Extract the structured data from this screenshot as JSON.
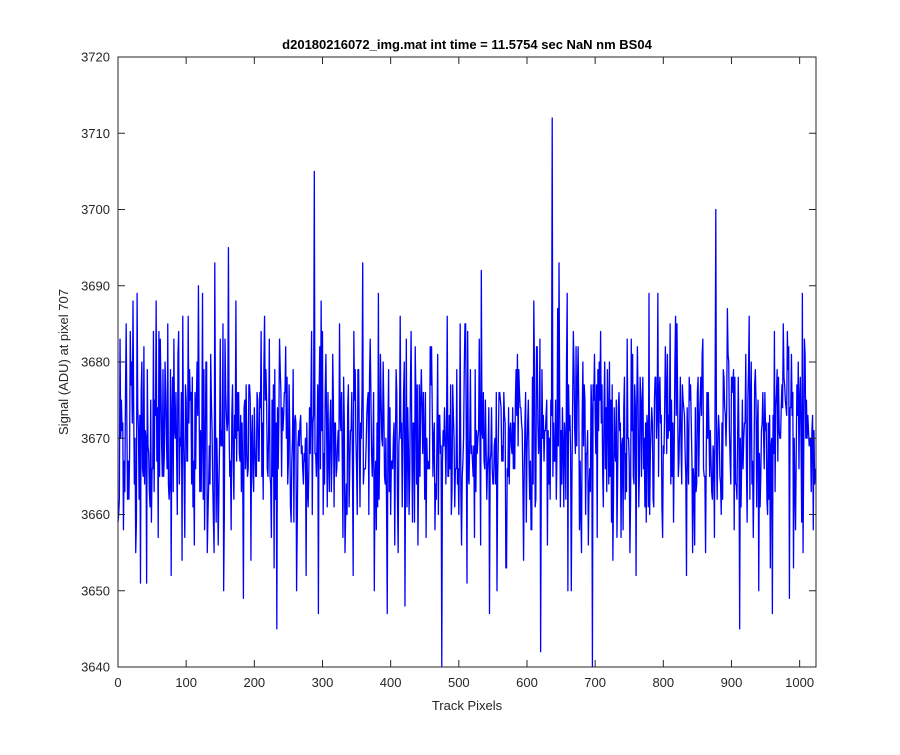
{
  "chart_data": {
    "type": "line",
    "title": "d20180216072_img.mat int time = 11.5754 sec  NaN nm BS04",
    "xlabel": "Track Pixels",
    "ylabel": "Signal (ADU) at pixel 707",
    "xlim": [
      0,
      1024
    ],
    "ylim": [
      3640,
      3720
    ],
    "xticks": [
      0,
      100,
      200,
      300,
      400,
      500,
      600,
      700,
      800,
      900,
      1000
    ],
    "yticks": [
      3640,
      3650,
      3660,
      3670,
      3680,
      3690,
      3700,
      3710,
      3720
    ],
    "grid": false,
    "legend": "none",
    "n_points": 1024,
    "baseline_mean": 3670,
    "series": [
      {
        "color": "#0000ff",
        "notable_points": [
          {
            "x": 1,
            "y": 3660
          },
          {
            "x": 3,
            "y": 3683
          },
          {
            "x": 8,
            "y": 3658
          },
          {
            "x": 12,
            "y": 3685
          },
          {
            "x": 16,
            "y": 3662
          },
          {
            "x": 20,
            "y": 3680
          },
          {
            "x": 22,
            "y": 3688
          },
          {
            "x": 26,
            "y": 3655
          },
          {
            "x": 28,
            "y": 3689
          },
          {
            "x": 33,
            "y": 3651
          },
          {
            "x": 40,
            "y": 3671
          },
          {
            "x": 52,
            "y": 3684
          },
          {
            "x": 62,
            "y": 3683
          },
          {
            "x": 73,
            "y": 3685
          },
          {
            "x": 78,
            "y": 3652
          },
          {
            "x": 94,
            "y": 3654
          },
          {
            "x": 118,
            "y": 3690
          },
          {
            "x": 124,
            "y": 3689
          },
          {
            "x": 136,
            "y": 3681
          },
          {
            "x": 142,
            "y": 3693
          },
          {
            "x": 147,
            "y": 3656
          },
          {
            "x": 155,
            "y": 3650
          },
          {
            "x": 162,
            "y": 3695
          },
          {
            "x": 173,
            "y": 3688
          },
          {
            "x": 184,
            "y": 3649
          },
          {
            "x": 195,
            "y": 3654
          },
          {
            "x": 215,
            "y": 3686
          },
          {
            "x": 225,
            "y": 3657
          },
          {
            "x": 233,
            "y": 3645
          },
          {
            "x": 246,
            "y": 3682
          },
          {
            "x": 262,
            "y": 3650
          },
          {
            "x": 276,
            "y": 3652
          },
          {
            "x": 288,
            "y": 3705
          },
          {
            "x": 294,
            "y": 3647
          },
          {
            "x": 298,
            "y": 3688
          },
          {
            "x": 310,
            "y": 3663
          },
          {
            "x": 330,
            "y": 3657
          },
          {
            "x": 345,
            "y": 3652
          },
          {
            "x": 359,
            "y": 3693
          },
          {
            "x": 376,
            "y": 3650
          },
          {
            "x": 395,
            "y": 3647
          },
          {
            "x": 408,
            "y": 3679
          },
          {
            "x": 421,
            "y": 3648
          },
          {
            "x": 430,
            "y": 3684
          },
          {
            "x": 452,
            "y": 3657
          },
          {
            "x": 465,
            "y": 3658
          },
          {
            "x": 475,
            "y": 3640
          },
          {
            "x": 488,
            "y": 3677
          },
          {
            "x": 500,
            "y": 3660
          },
          {
            "x": 512,
            "y": 3651
          },
          {
            "x": 533,
            "y": 3692
          },
          {
            "x": 545,
            "y": 3647
          },
          {
            "x": 556,
            "y": 3650
          },
          {
            "x": 570,
            "y": 3653
          },
          {
            "x": 590,
            "y": 3674
          },
          {
            "x": 606,
            "y": 3658
          },
          {
            "x": 620,
            "y": 3642
          },
          {
            "x": 637,
            "y": 3712
          },
          {
            "x": 647,
            "y": 3693
          },
          {
            "x": 660,
            "y": 3650
          },
          {
            "x": 675,
            "y": 3682
          },
          {
            "x": 690,
            "y": 3656
          },
          {
            "x": 696,
            "y": 3640
          },
          {
            "x": 710,
            "y": 3677
          },
          {
            "x": 732,
            "y": 3657
          },
          {
            "x": 746,
            "y": 3663
          },
          {
            "x": 760,
            "y": 3652
          },
          {
            "x": 783,
            "y": 3674
          },
          {
            "x": 792,
            "y": 3689
          },
          {
            "x": 799,
            "y": 3657
          },
          {
            "x": 810,
            "y": 3685
          },
          {
            "x": 822,
            "y": 3665
          },
          {
            "x": 834,
            "y": 3652
          },
          {
            "x": 858,
            "y": 3683
          },
          {
            "x": 872,
            "y": 3662
          },
          {
            "x": 877,
            "y": 3700
          },
          {
            "x": 885,
            "y": 3660
          },
          {
            "x": 895,
            "y": 3681
          },
          {
            "x": 912,
            "y": 3645
          },
          {
            "x": 925,
            "y": 3679
          },
          {
            "x": 940,
            "y": 3650
          },
          {
            "x": 960,
            "y": 3647
          },
          {
            "x": 985,
            "y": 3649
          },
          {
            "x": 998,
            "y": 3680
          },
          {
            "x": 1005,
            "y": 3655
          },
          {
            "x": 1008,
            "y": 3681
          },
          {
            "x": 1015,
            "y": 3670
          },
          {
            "x": 1020,
            "y": 3658
          },
          {
            "x": 1023,
            "y": 3666
          }
        ]
      }
    ]
  }
}
